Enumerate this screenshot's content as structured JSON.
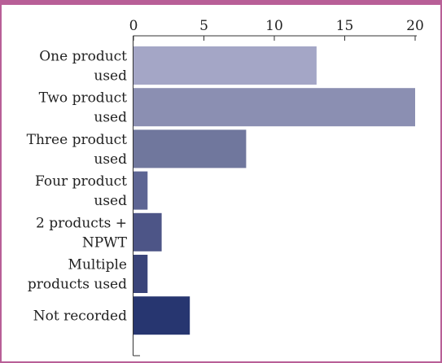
{
  "chart_data": {
    "type": "bar",
    "orientation": "horizontal",
    "title": "",
    "xlabel": "",
    "ylabel": "",
    "xlim": [
      0,
      20
    ],
    "xticks": [
      0,
      5,
      10,
      15,
      20
    ],
    "grid": false,
    "categories": [
      [
        "One product",
        "used"
      ],
      [
        "Two product",
        "used"
      ],
      [
        "Three product",
        "used"
      ],
      [
        "Four product",
        "used"
      ],
      [
        "2 products +",
        "NPWT"
      ],
      [
        "Multiple",
        "products used"
      ],
      [
        "Not recorded"
      ]
    ],
    "values": [
      13,
      20,
      8,
      1,
      2,
      1,
      4
    ],
    "bar_colors": [
      "#a4a6c6",
      "#8b8fb2",
      "#70779d",
      "#5d6593",
      "#4d5587",
      "#3a4479",
      "#273670"
    ]
  },
  "colors": {
    "frame": "#b85f97",
    "axis": "#333333"
  }
}
